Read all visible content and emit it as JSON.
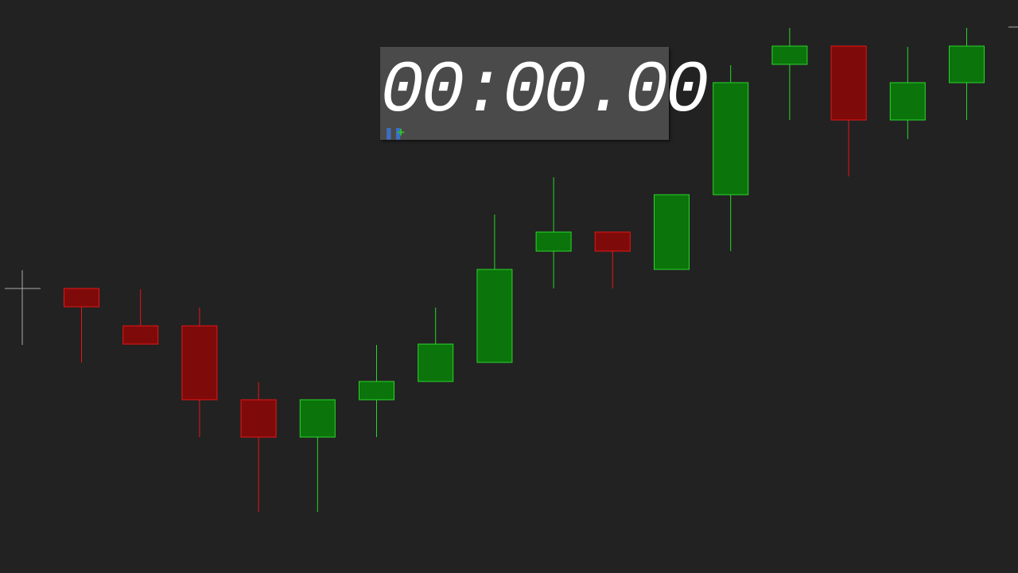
{
  "chart_data": {
    "type": "candlestick",
    "open": [
      358,
      311,
      311,
      218,
      171,
      218,
      241,
      265,
      405,
      429,
      382,
      476,
      640,
      663,
      570,
      617
    ],
    "high": [
      358,
      357,
      334,
      240,
      218,
      287,
      334,
      451,
      498,
      429,
      476,
      639,
      686,
      663,
      662,
      686
    ],
    "low": [
      265,
      288,
      171,
      77,
      77,
      171,
      241,
      265,
      358,
      358,
      382,
      405,
      570,
      499,
      546,
      570
    ],
    "close": [
      335,
      288,
      218,
      171,
      218,
      241,
      288,
      382,
      429,
      405,
      476,
      617,
      663,
      570,
      617,
      663
    ],
    "ylim": [
      0,
      721
    ],
    "up_color": "#0b740b",
    "down_color": "#7f0a0a"
  },
  "timer": {
    "display": "00:00.00"
  }
}
